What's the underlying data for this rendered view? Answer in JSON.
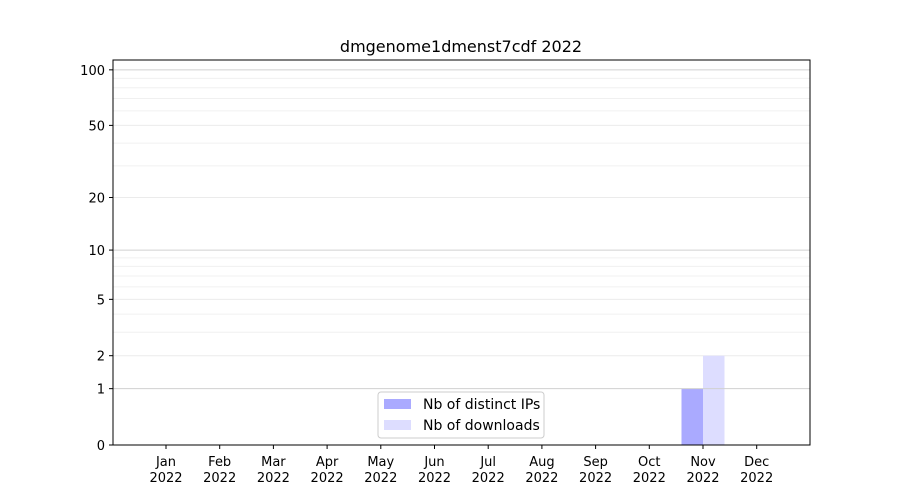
{
  "chart_data": {
    "type": "bar",
    "title": "dmgenome1dmenst7cdf 2022",
    "xlabel": "",
    "ylabel": "",
    "y_scale": "log(1+y)",
    "ylim": [
      0,
      113
    ],
    "y_ticks": [
      0,
      1,
      2,
      5,
      10,
      20,
      50,
      100
    ],
    "y_tick_labels": [
      "0",
      "1",
      "2",
      "5",
      "10",
      "20",
      "50",
      "100"
    ],
    "grid": true,
    "legend_position": "bottom-center",
    "categories": [
      "Jan\n2022",
      "Feb\n2022",
      "Mar\n2022",
      "Apr\n2022",
      "May\n2022",
      "Jun\n2022",
      "Jul\n2022",
      "Aug\n2022",
      "Sep\n2022",
      "Oct\n2022",
      "Nov\n2022",
      "Dec\n2022"
    ],
    "tick_months": [
      "Jan",
      "Feb",
      "Mar",
      "Apr",
      "May",
      "Jun",
      "Jul",
      "Aug",
      "Sep",
      "Oct",
      "Nov",
      "Dec"
    ],
    "tick_year": "2022",
    "series": [
      {
        "name": "Nb of distinct IPs",
        "color": "#aaaaff",
        "values": [
          0,
          0,
          0,
          0,
          0,
          0,
          0,
          0,
          0,
          0,
          1,
          0
        ]
      },
      {
        "name": "Nb of downloads",
        "color": "#ddddff",
        "values": [
          0,
          0,
          0,
          0,
          0,
          0,
          0,
          0,
          0,
          0,
          2,
          0
        ]
      }
    ]
  }
}
